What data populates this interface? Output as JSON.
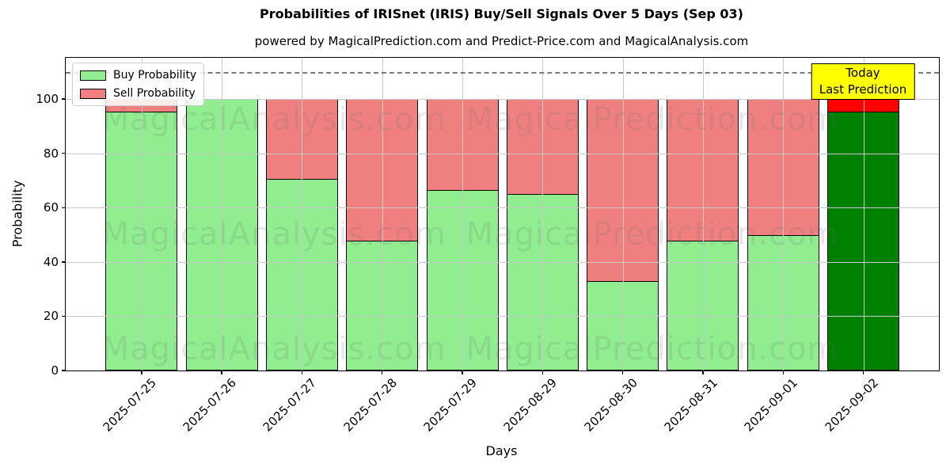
{
  "figure": {
    "title": "Probabilities of IRISnet (IRIS) Buy/Sell Signals Over 5 Days (Sep 03)",
    "subtitle": "powered by MagicalPrediction.com and Predict-Price.com and MagicalAnalysis.com"
  },
  "legend": {
    "items": [
      {
        "label": "Buy Probability",
        "color": "#90ee90"
      },
      {
        "label": "Sell Probability",
        "color": "#f08080"
      }
    ]
  },
  "annotation": {
    "line1": "Today",
    "line2": "Last Prediction",
    "bg_color": "#ffff00"
  },
  "watermarks": {
    "left_text": "MagicalAnalysis.com",
    "right_text": "MagicalPrediction.com"
  },
  "chart_data": {
    "type": "bar",
    "stacked": true,
    "title": "Probabilities of IRISnet (IRIS) Buy/Sell Signals Over 5 Days (Sep 03)",
    "xlabel": "Days",
    "ylabel": "Probability",
    "categories": [
      "2025-07-25",
      "2025-07-26",
      "2025-07-27",
      "2025-07-28",
      "2025-07-29",
      "2025-08-29",
      "2025-08-30",
      "2025-08-31",
      "2025-09-01",
      "2025-09-02"
    ],
    "series": [
      {
        "name": "Buy Probability",
        "color": "#90ee90",
        "today_color": "#008000",
        "values": [
          95.5,
          100,
          70.5,
          48,
          66.5,
          65,
          33,
          48,
          50,
          95.5
        ]
      },
      {
        "name": "Sell Probability",
        "color": "#f08080",
        "today_color": "#ff0000",
        "values": [
          4.5,
          0,
          29.5,
          52,
          33.5,
          35,
          67,
          52,
          50,
          4.5
        ]
      }
    ],
    "today_index": 9,
    "yticks": [
      0,
      20,
      40,
      60,
      80,
      100
    ],
    "ylim": [
      0,
      115.2
    ],
    "dashed_line_y": 110,
    "grid": true,
    "legend_position": "upper left",
    "bar_edge_color": "#000000"
  }
}
